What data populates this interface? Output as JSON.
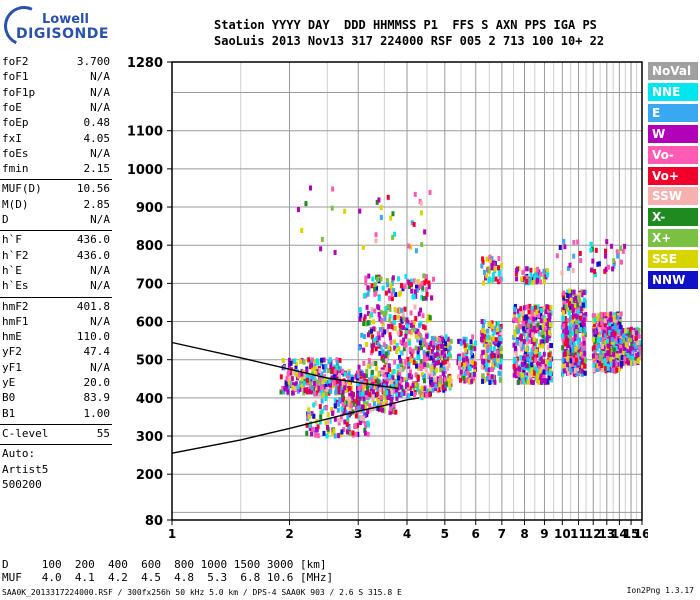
{
  "logo": {
    "line1": "Lowell",
    "line2": "DIGISONDE"
  },
  "header": {
    "line1": "Station YYYY DAY  DDD HHMMSS P1  FFS S AXN PPS IGA PS",
    "line2": "SaoLuis 2013 Nov13 317 224000 RSF 005 2 713 100 10+ 22"
  },
  "params": {
    "group1": [
      {
        "k": "foF2",
        "v": "3.700"
      },
      {
        "k": "foF1",
        "v": "N/A"
      },
      {
        "k": "foF1p",
        "v": "N/A"
      },
      {
        "k": "foE",
        "v": "N/A"
      },
      {
        "k": "foEp",
        "v": "0.48"
      },
      {
        "k": "fxI",
        "v": "4.05"
      },
      {
        "k": "foEs",
        "v": "N/A"
      },
      {
        "k": "fmin",
        "v": "2.15"
      }
    ],
    "group2": [
      {
        "k": "MUF(D)",
        "v": "10.56"
      },
      {
        "k": "M(D)",
        "v": "2.85"
      },
      {
        "k": "D",
        "v": "N/A"
      }
    ],
    "group3": [
      {
        "k": "h`F",
        "v": "436.0"
      },
      {
        "k": "h`F2",
        "v": "436.0"
      },
      {
        "k": "h`E",
        "v": "N/A"
      },
      {
        "k": "h`Es",
        "v": "N/A"
      }
    ],
    "group4": [
      {
        "k": "hmF2",
        "v": "401.8"
      },
      {
        "k": "hmF1",
        "v": "N/A"
      },
      {
        "k": "hmE",
        "v": "110.0"
      },
      {
        "k": "yF2",
        "v": "47.4"
      },
      {
        "k": "yF1",
        "v": "N/A"
      },
      {
        "k": "yE",
        "v": "20.0"
      },
      {
        "k": "B0",
        "v": "83.9"
      },
      {
        "k": "B1",
        "v": "1.00"
      }
    ],
    "clevel": {
      "k": "C-level",
      "v": "55"
    },
    "auto": [
      "Auto:",
      "Artist5",
      "500200"
    ]
  },
  "legend": [
    {
      "label": "NoVal",
      "color": "#a0a0a0",
      "text": "#ffffff"
    },
    {
      "label": "NNE",
      "color": "#00e5ee",
      "text": "#ffffff"
    },
    {
      "label": "E",
      "color": "#3aa8f0",
      "text": "#ffffff"
    },
    {
      "label": "W",
      "color": "#b000b8",
      "text": "#ffffff"
    },
    {
      "label": "Vo-",
      "color": "#ff5ab4",
      "text": "#ffffff"
    },
    {
      "label": "Vo+",
      "color": "#f0002a",
      "text": "#ffffff"
    },
    {
      "label": "SSW",
      "color": "#f5b0b0",
      "text": "#ffffff"
    },
    {
      "label": "X-",
      "color": "#1f8a1f",
      "text": "#ffffff"
    },
    {
      "label": "X+",
      "color": "#7ac043",
      "text": "#ffffff"
    },
    {
      "label": "SSE",
      "color": "#d8d400",
      "text": "#ffffff"
    },
    {
      "label": "NNW",
      "color": "#1010c8",
      "text": "#ffffff"
    }
  ],
  "footer": {
    "d_row": "D     100  200  400  600  800 1000 1500 3000 [km]",
    "muf_row": "MUF   4.0  4.1  4.2  4.5  4.8  5.3  6.8 10.6 [MHz]",
    "file_row": "SAA0K_2013317224000.RSF / 300fx256h 50 kHz 5.0 km / DPS-4 SAA0K 903 / 2.6 S 315.8 E",
    "version": "Ion2Png 1.3.17"
  },
  "chart_data": {
    "type": "scatter",
    "title": "",
    "xlabel": "",
    "ylabel": "",
    "xlim": [
      1,
      16
    ],
    "ylim": [
      80,
      1280
    ],
    "x_ticks": [
      1,
      2,
      3,
      4,
      5,
      6,
      7,
      8,
      9,
      10,
      11,
      12,
      13,
      14,
      15,
      16
    ],
    "y_ticks": [
      80,
      200,
      300,
      400,
      500,
      600,
      700,
      800,
      900,
      1000,
      1100,
      1280
    ],
    "x_minor_grid": 0.5,
    "y_grid_step": 100,
    "grid": true,
    "x_scale": "log",
    "clusters": [
      {
        "x": [
          1.9,
          2.7
        ],
        "y": [
          410,
          500
        ],
        "n": 220
      },
      {
        "x": [
          2.2,
          3.2
        ],
        "y": [
          300,
          470
        ],
        "n": 200
      },
      {
        "x": [
          2.6,
          3.8
        ],
        "y": [
          360,
          470
        ],
        "n": 200
      },
      {
        "x": [
          3.0,
          4.6
        ],
        "y": [
          400,
          640
        ],
        "n": 420
      },
      {
        "x": [
          4.6,
          5.2
        ],
        "y": [
          420,
          560
        ],
        "n": 160
      },
      {
        "x": [
          5.4,
          6.0
        ],
        "y": [
          440,
          560
        ],
        "n": 90
      },
      {
        "x": [
          6.2,
          7.0
        ],
        "y": [
          440,
          600
        ],
        "n": 150
      },
      {
        "x": [
          7.5,
          9.4
        ],
        "y": [
          440,
          640
        ],
        "n": 420
      },
      {
        "x": [
          10.0,
          11.5
        ],
        "y": [
          460,
          680
        ],
        "n": 380
      },
      {
        "x": [
          12.0,
          14.2
        ],
        "y": [
          470,
          620
        ],
        "n": 420
      },
      {
        "x": [
          14.0,
          15.8
        ],
        "y": [
          490,
          580
        ],
        "n": 160
      },
      {
        "x": [
          3.1,
          4.7
        ],
        "y": [
          660,
          720
        ],
        "n": 90
      },
      {
        "x": [
          6.2,
          7.0
        ],
        "y": [
          700,
          770
        ],
        "n": 40
      },
      {
        "x": [
          7.6,
          9.2
        ],
        "y": [
          700,
          740
        ],
        "n": 60
      },
      {
        "x": [
          2.1,
          4.8
        ],
        "y": [
          780,
          960
        ],
        "n": 35
      },
      {
        "x": [
          9.5,
          14.5
        ],
        "y": [
          720,
          810
        ],
        "n": 40
      }
    ],
    "series": [
      {
        "x": [
          1.0,
          1.5,
          2.0,
          2.5,
          3.0,
          3.5,
          4.0,
          4.3
        ],
        "y": [
          255,
          290,
          320,
          345,
          365,
          380,
          395,
          400
        ],
        "color": "#000000"
      },
      {
        "x": [
          1.0,
          1.5,
          2.0,
          2.5,
          3.0,
          3.5,
          3.8
        ],
        "y": [
          545,
          505,
          475,
          452,
          440,
          430,
          425
        ],
        "color": "#000000"
      }
    ]
  }
}
